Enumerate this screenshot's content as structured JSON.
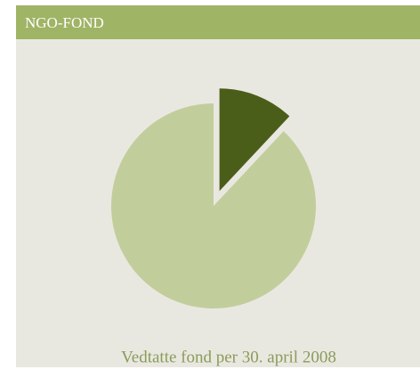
{
  "chart_data": {
    "type": "pie",
    "title": "NGO-FOND",
    "caption": "Vedtatte fond per 30. april 2008",
    "values": [
      12,
      88
    ],
    "colors": [
      "#4a5e1a",
      "#c2cd9c"
    ],
    "explode": [
      true,
      false
    ]
  }
}
